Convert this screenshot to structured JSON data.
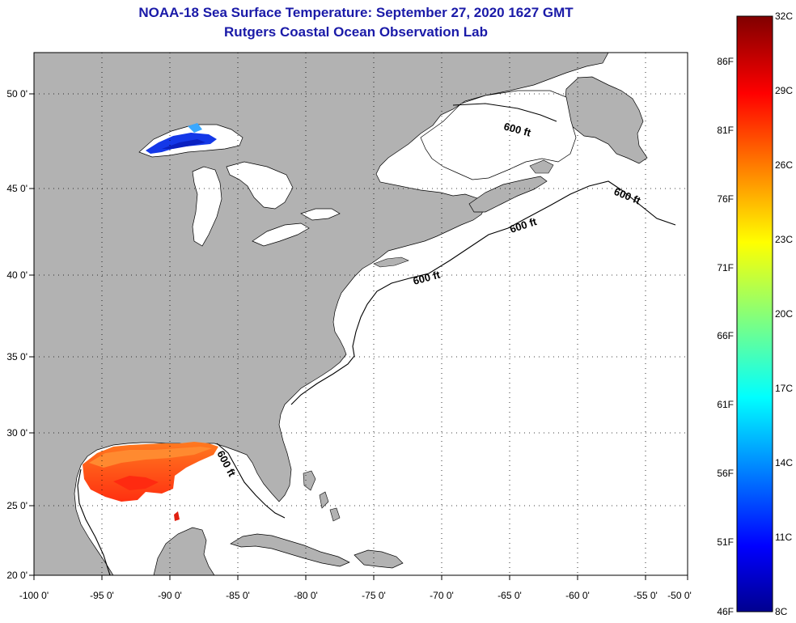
{
  "title": {
    "line1": "NOAA-18 Sea Surface Temperature:  September 27, 2020 1627 GMT",
    "line2": "Rutgers Coastal Ocean Observation Lab"
  },
  "axes": {
    "x_labels": [
      "-100 0'",
      "-95 0'",
      "-90 0'",
      "-85 0'",
      "-80 0'",
      "-75 0'",
      "-70 0'",
      "-65 0'",
      "-60 0'",
      "-55 0'",
      "-50 0'"
    ],
    "y_labels": [
      "50 0'",
      "45 0'",
      "40 0'",
      "35 0'",
      "30 0'",
      "25 0'",
      "20 0'"
    ]
  },
  "contour_labels": [
    "600 ft",
    "600 ft",
    "600 ft",
    "600 ft",
    "600 ft"
  ],
  "colorbar": {
    "celsius_labels": [
      "32C",
      "29C",
      "26C",
      "23C",
      "20C",
      "17C",
      "14C",
      "11C",
      "8C"
    ],
    "fahrenheit_labels": [
      "86F",
      "81F",
      "76F",
      "71F",
      "66F",
      "61F",
      "56F",
      "51F",
      "46F"
    ]
  },
  "colors": {
    "land": "#b2b2b2",
    "ocean": "#ffffff",
    "title": "#1a1aa8",
    "sst_warm": "#ff5a10",
    "sst_cold": "#1030e0"
  }
}
